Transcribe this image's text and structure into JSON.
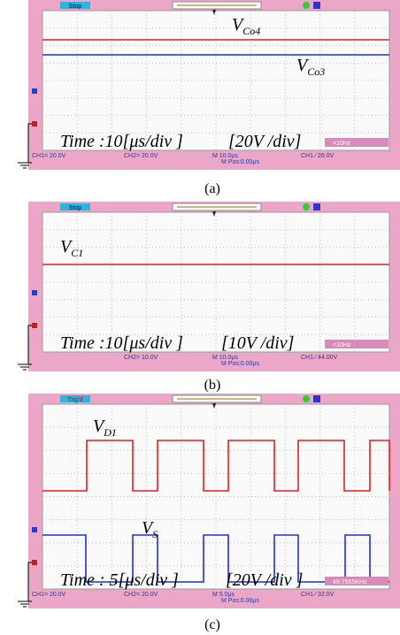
{
  "panels": [
    {
      "status": "Stop",
      "labels": [
        {
          "main": "V",
          "sub": "Co4"
        },
        {
          "main": "V",
          "sub": "Co3"
        }
      ],
      "time": "Time :10[μs/div ]",
      "scale": "[20V /div]",
      "ch1": "CH1= 20.0V",
      "ch2": "CH2= 20.0V",
      "timebase": "M 10.0μs",
      "trigger": "CH1 ⁄ 26.0V",
      "mpos": "M Pos:0.00μs",
      "freq": "<10Hz",
      "caption": "(a)"
    },
    {
      "status": "Stop",
      "labels": [
        {
          "main": "V",
          "sub": "C1"
        }
      ],
      "time": "Time :10[μs/div ]",
      "scale": "[10V /div]",
      "ch2": "CH2= 10.0V",
      "timebase": "M 10.0μs",
      "trigger": "CH1 ⁄ 44.00V",
      "mpos": "M Pos:0.00μs",
      "freq": "<10Hz",
      "caption": "(b)"
    },
    {
      "status": "Trig'd",
      "labels": [
        {
          "main": "V",
          "sub": "D1"
        },
        {
          "main": "V",
          "sub": "S"
        }
      ],
      "time": "Time : 5[μs/div ]",
      "scale": "[20V /div ]",
      "ch1": "CH1= 20.0V",
      "ch2": "CH2= 20.0V",
      "timebase": "M 5.0μs",
      "trigger": "CH1 ⁄ 32.0V",
      "mpos": "M Pos:0.00μs",
      "freq": "49.7555KHz",
      "caption": "(c)"
    }
  ]
}
